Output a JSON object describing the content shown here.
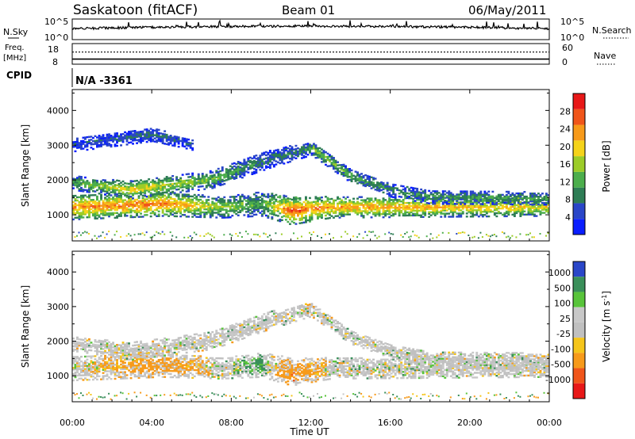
{
  "header": {
    "station": "Saskatoon (fitACF)",
    "beam": "Beam 01",
    "date": "06/May/2011"
  },
  "sky_panel": {
    "left_label": "N.Sky",
    "right_label": "N.Search",
    "left_ticks": [
      "10^5",
      "10^0"
    ],
    "right_ticks": [
      "10^5",
      "10^0"
    ]
  },
  "freq_panel": {
    "label_line1": "Freq.",
    "label_line2": "[MHz]",
    "right_label": "Nave",
    "left_ticks": [
      "18",
      "8"
    ],
    "right_ticks": [
      "60",
      "0"
    ],
    "nave_value": 40,
    "freq_value": 10.2
  },
  "cpid": {
    "label": "CPID",
    "value": "N/A -3361"
  },
  "colors": {
    "power": [
      "#0a1eff",
      "#2a46c8",
      "#2e7d55",
      "#4cae4c",
      "#9ccc28",
      "#f5d31a",
      "#f79a1a",
      "#f0551a",
      "#e81818"
    ],
    "velocity": [
      "#e81818",
      "#f0551a",
      "#f79a1a",
      "#f5c51a",
      "#c0c0c0",
      "#c8c8c8",
      "#58c43a",
      "#3a8f5a",
      "#2a46c8"
    ]
  },
  "chart_data": [
    {
      "type": "heatmap",
      "name": "power",
      "xlabel": "",
      "ylabel": "Slant Range [km]",
      "x_ticks": [
        "00:00",
        "04:00",
        "08:00",
        "12:00",
        "16:00",
        "20:00",
        "00:00"
      ],
      "x_tick_hours": [
        0,
        4,
        8,
        12,
        16,
        20,
        24
      ],
      "y_ticks": [
        1000,
        2000,
        3000,
        4000
      ],
      "ylim": [
        250,
        4600
      ],
      "xlim": [
        0,
        24
      ],
      "colorbar": {
        "label": "Power [dB]",
        "ticks": [
          4,
          8,
          12,
          16,
          20,
          24,
          28
        ],
        "range": [
          0,
          32
        ]
      },
      "bands": [
        {
          "t": [
            0,
            4.5,
            7.5,
            9.5,
            11,
            13,
            24
          ],
          "range_km": [
            1200,
            1300,
            1200,
            1300,
            1100,
            1200,
            1200
          ],
          "width_km": [
            700,
            700,
            600,
            700,
            800,
            600,
            500
          ],
          "power_db": [
            24,
            26,
            16,
            12,
            28,
            24,
            20
          ]
        },
        {
          "t": [
            0,
            3,
            7,
            10,
            12
          ],
          "range_km": [
            1900,
            1700,
            2000,
            2600,
            2900
          ],
          "width_km": [
            400,
            500,
            500,
            500,
            400
          ],
          "power_db": [
            12,
            20,
            14,
            8,
            10
          ]
        },
        {
          "t": [
            12,
            14,
            16,
            18,
            24
          ],
          "range_km": [
            2900,
            2100,
            1700,
            1500,
            1450
          ],
          "width_km": [
            400,
            400,
            400,
            400,
            350
          ],
          "power_db": [
            16,
            12,
            10,
            10,
            12
          ]
        },
        {
          "t": [
            0,
            4,
            6
          ],
          "range_km": [
            3000,
            3300,
            3000
          ],
          "width_km": [
            400,
            400,
            300
          ],
          "power_db": [
            6,
            8,
            6
          ]
        }
      ]
    },
    {
      "type": "heatmap",
      "name": "velocity",
      "xlabel": "Time UT",
      "ylabel": "Slant Range [km]",
      "x_ticks": [
        "00:00",
        "04:00",
        "08:00",
        "12:00",
        "16:00",
        "20:00",
        "00:00"
      ],
      "x_tick_hours": [
        0,
        4,
        8,
        12,
        16,
        20,
        24
      ],
      "y_ticks": [
        1000,
        2000,
        3000,
        4000
      ],
      "ylim": [
        250,
        4600
      ],
      "xlim": [
        0,
        24
      ],
      "colorbar": {
        "label": "Velocity [m s^-1]",
        "ticks": [
          1000,
          500,
          100,
          25,
          -25,
          -100,
          -500,
          -1000
        ]
      },
      "bands": [
        {
          "t": [
            0,
            4.5,
            7.5,
            9.5,
            11,
            13,
            24
          ],
          "range_km": [
            1200,
            1300,
            1200,
            1300,
            1100,
            1200,
            1200
          ],
          "width_km": [
            700,
            700,
            600,
            700,
            800,
            600,
            500
          ],
          "velocity": [
            0,
            -300,
            0,
            200,
            -400,
            0,
            0
          ]
        },
        {
          "t": [
            0,
            3,
            7,
            10,
            12
          ],
          "range_km": [
            1900,
            1700,
            2000,
            2600,
            2900
          ],
          "width_km": [
            400,
            500,
            500,
            500,
            400
          ],
          "velocity": [
            0,
            0,
            0,
            0,
            0
          ]
        },
        {
          "t": [
            12,
            14,
            16,
            18,
            24
          ],
          "range_km": [
            2900,
            2100,
            1700,
            1500,
            1450
          ],
          "width_km": [
            400,
            400,
            400,
            400,
            350
          ],
          "velocity": [
            0,
            0,
            0,
            0,
            0
          ]
        }
      ]
    }
  ]
}
